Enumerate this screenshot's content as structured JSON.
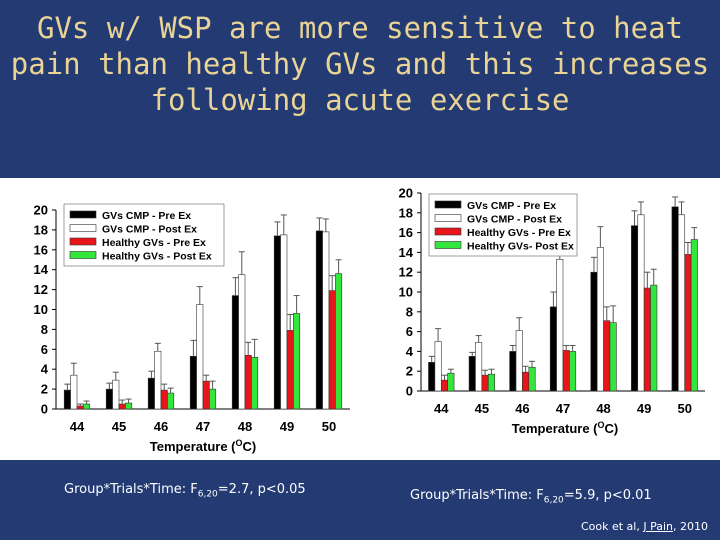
{
  "title_lines": [
    "GVs w/ WSP are more sensitive to heat",
    "pain than healthy GVs and this increases",
    "following acute exercise"
  ],
  "colors": {
    "background": "#233a73",
    "title": "#e9d496",
    "black": "#000000",
    "white": "#ffffff",
    "red": "#e8161b",
    "green": "#32e63c"
  },
  "stats": {
    "left": {
      "prefix": "Group*Trials*Time: F",
      "sub": "6,20",
      "suffix": "=2.7, p<0.05"
    },
    "right": {
      "prefix": "Group*Trials*Time: F",
      "sub": "6,20",
      "suffix": "=5.9, p<0.01"
    }
  },
  "citation": {
    "prefix": "Cook et al, ",
    "journal": "J Pain",
    "suffix": ", 2010"
  },
  "chart_data": [
    {
      "type": "bar",
      "categories": [
        "44",
        "45",
        "46",
        "47",
        "48",
        "49",
        "50"
      ],
      "ylim": [
        0,
        20
      ],
      "yticks": [
        0,
        2,
        4,
        6,
        8,
        10,
        12,
        14,
        16,
        18,
        20
      ],
      "xlabel": "Temperature (",
      "xlabel_sup": "O",
      "xlabel_end": "C)",
      "legend_position": "top-left",
      "series": [
        {
          "name": "GVs CMP - Pre Ex",
          "color": "#000000",
          "values": [
            1.9,
            2.0,
            3.1,
            5.3,
            11.4,
            17.4,
            17.9
          ],
          "errors": [
            0.6,
            0.6,
            0.7,
            1.6,
            1.8,
            1.4,
            1.3
          ]
        },
        {
          "name": "GVs CMP - Post Ex",
          "color": "#ffffff",
          "values": [
            3.4,
            2.9,
            5.8,
            10.5,
            13.5,
            17.5,
            17.8
          ],
          "errors": [
            1.2,
            0.8,
            0.8,
            1.8,
            2.3,
            2.0,
            1.3
          ]
        },
        {
          "name": "Healthy GVs - Pre Ex",
          "color": "#e8161b",
          "values": [
            0.3,
            0.5,
            1.9,
            2.8,
            5.4,
            7.9,
            11.9
          ],
          "errors": [
            0.2,
            0.4,
            0.6,
            0.6,
            1.3,
            1.6,
            1.5
          ]
        },
        {
          "name": "Healthy GVs - Post Ex",
          "color": "#32e63c",
          "values": [
            0.5,
            0.6,
            1.6,
            2.0,
            5.2,
            9.6,
            13.6
          ],
          "errors": [
            0.3,
            0.4,
            0.5,
            0.8,
            1.8,
            1.8,
            1.4
          ]
        }
      ]
    },
    {
      "type": "bar",
      "categories": [
        "44",
        "45",
        "46",
        "47",
        "48",
        "49",
        "50"
      ],
      "ylim": [
        0,
        20
      ],
      "yticks": [
        0,
        2,
        4,
        6,
        8,
        10,
        12,
        14,
        16,
        18,
        20
      ],
      "xlabel": "Temperature (",
      "xlabel_sup": "O",
      "xlabel_end": "C)",
      "legend_position": "top-left",
      "series": [
        {
          "name": "GVs CMP - Pre Ex",
          "color": "#000000",
          "values": [
            2.9,
            3.5,
            4.0,
            8.5,
            12.0,
            16.7,
            18.6
          ],
          "errors": [
            0.6,
            0.4,
            0.6,
            1.5,
            1.5,
            1.5,
            1.0
          ]
        },
        {
          "name": "GVs CMP - Post Ex",
          "color": "#ffffff",
          "values": [
            5.0,
            4.9,
            6.1,
            13.3,
            14.5,
            17.8,
            17.8
          ],
          "errors": [
            1.3,
            0.7,
            1.3,
            1.6,
            2.1,
            1.3,
            1.3
          ]
        },
        {
          "name": "Healthy GVs - Pre Ex",
          "color": "#e8161b",
          "values": [
            1.1,
            1.6,
            1.9,
            4.1,
            7.1,
            10.4,
            13.8
          ],
          "errors": [
            0.5,
            0.5,
            0.6,
            0.5,
            1.4,
            1.6,
            1.2
          ]
        },
        {
          "name": "Healthy GVs- Post Ex",
          "color": "#32e63c",
          "values": [
            1.8,
            1.7,
            2.4,
            4.0,
            6.9,
            10.7,
            15.3
          ],
          "errors": [
            0.4,
            0.5,
            0.6,
            0.6,
            1.7,
            1.6,
            1.2
          ]
        }
      ]
    }
  ]
}
